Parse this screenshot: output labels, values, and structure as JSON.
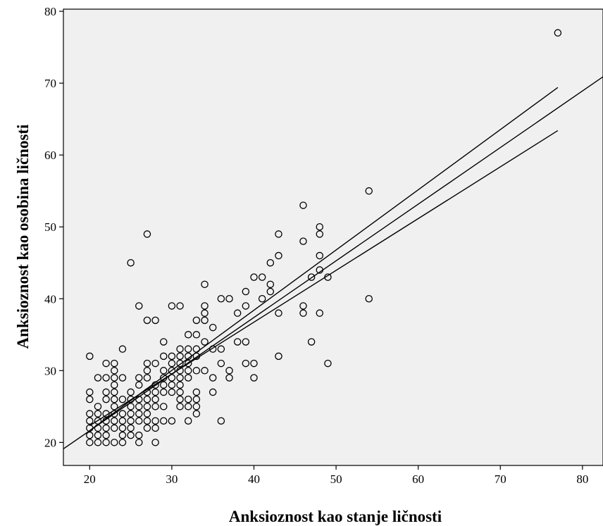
{
  "chart_data": {
    "type": "scatter",
    "title": "",
    "xlabel": "Anksioznost kao stanje ličnosti",
    "ylabel": "Anksioznost kao osobina ličnosti",
    "xlim": [
      16.8,
      82.5
    ],
    "ylim": [
      16.8,
      80.3
    ],
    "xticks": [
      20,
      30,
      40,
      50,
      60,
      70,
      80
    ],
    "yticks": [
      20,
      30,
      40,
      50,
      60,
      70,
      80
    ],
    "grid": false,
    "legend": "none",
    "colors": {
      "plot_background": "#f0f0f0",
      "marker": "#000000",
      "line": "#000000"
    },
    "points": [
      [
        20,
        20
      ],
      [
        20,
        21
      ],
      [
        20,
        22
      ],
      [
        20,
        23
      ],
      [
        20,
        24
      ],
      [
        20,
        26
      ],
      [
        20,
        27
      ],
      [
        20,
        32
      ],
      [
        21,
        20
      ],
      [
        21,
        21
      ],
      [
        21,
        22
      ],
      [
        21,
        23
      ],
      [
        21,
        24
      ],
      [
        21,
        25
      ],
      [
        21,
        29
      ],
      [
        22,
        20
      ],
      [
        22,
        21
      ],
      [
        22,
        22
      ],
      [
        22,
        23
      ],
      [
        22,
        24
      ],
      [
        22,
        26
      ],
      [
        22,
        27
      ],
      [
        22,
        29
      ],
      [
        22,
        31
      ],
      [
        23,
        20
      ],
      [
        23,
        22
      ],
      [
        23,
        23
      ],
      [
        23,
        24
      ],
      [
        23,
        25
      ],
      [
        23,
        26
      ],
      [
        23,
        27
      ],
      [
        23,
        28
      ],
      [
        23,
        29
      ],
      [
        23,
        30
      ],
      [
        23,
        31
      ],
      [
        24,
        20
      ],
      [
        24,
        21
      ],
      [
        24,
        22
      ],
      [
        24,
        23
      ],
      [
        24,
        24
      ],
      [
        24,
        26
      ],
      [
        24,
        29
      ],
      [
        24,
        33
      ],
      [
        25,
        21
      ],
      [
        25,
        22
      ],
      [
        25,
        23
      ],
      [
        25,
        24
      ],
      [
        25,
        25
      ],
      [
        25,
        26
      ],
      [
        25,
        27
      ],
      [
        25,
        45
      ],
      [
        26,
        20
      ],
      [
        26,
        21
      ],
      [
        26,
        23
      ],
      [
        26,
        24
      ],
      [
        26,
        25
      ],
      [
        26,
        26
      ],
      [
        26,
        28
      ],
      [
        26,
        29
      ],
      [
        26,
        39
      ],
      [
        27,
        22
      ],
      [
        27,
        23
      ],
      [
        27,
        24
      ],
      [
        27,
        25
      ],
      [
        27,
        26
      ],
      [
        27,
        27
      ],
      [
        27,
        29
      ],
      [
        27,
        30
      ],
      [
        27,
        31
      ],
      [
        27,
        37
      ],
      [
        27,
        49
      ],
      [
        28,
        20
      ],
      [
        28,
        22
      ],
      [
        28,
        23
      ],
      [
        28,
        25
      ],
      [
        28,
        26
      ],
      [
        28,
        27
      ],
      [
        28,
        28
      ],
      [
        28,
        31
      ],
      [
        28,
        37
      ],
      [
        29,
        23
      ],
      [
        29,
        25
      ],
      [
        29,
        27
      ],
      [
        29,
        28
      ],
      [
        29,
        29
      ],
      [
        29,
        30
      ],
      [
        29,
        32
      ],
      [
        29,
        34
      ],
      [
        30,
        23
      ],
      [
        30,
        27
      ],
      [
        30,
        28
      ],
      [
        30,
        29
      ],
      [
        30,
        30
      ],
      [
        30,
        31
      ],
      [
        30,
        32
      ],
      [
        30,
        39
      ],
      [
        31,
        25
      ],
      [
        31,
        26
      ],
      [
        31,
        27
      ],
      [
        31,
        28
      ],
      [
        31,
        29
      ],
      [
        31,
        30
      ],
      [
        31,
        31
      ],
      [
        31,
        32
      ],
      [
        31,
        33
      ],
      [
        31,
        39
      ],
      [
        32,
        23
      ],
      [
        32,
        25
      ],
      [
        32,
        26
      ],
      [
        32,
        29
      ],
      [
        32,
        30
      ],
      [
        32,
        31
      ],
      [
        32,
        32
      ],
      [
        32,
        33
      ],
      [
        32,
        35
      ],
      [
        33,
        24
      ],
      [
        33,
        25
      ],
      [
        33,
        26
      ],
      [
        33,
        27
      ],
      [
        33,
        30
      ],
      [
        33,
        32
      ],
      [
        33,
        33
      ],
      [
        33,
        35
      ],
      [
        33,
        37
      ],
      [
        34,
        30
      ],
      [
        34,
        34
      ],
      [
        34,
        37
      ],
      [
        34,
        38
      ],
      [
        34,
        39
      ],
      [
        34,
        42
      ],
      [
        35,
        27
      ],
      [
        35,
        29
      ],
      [
        35,
        33
      ],
      [
        35,
        36
      ],
      [
        36,
        23
      ],
      [
        36,
        31
      ],
      [
        36,
        33
      ],
      [
        36,
        40
      ],
      [
        37,
        29
      ],
      [
        37,
        30
      ],
      [
        37,
        40
      ],
      [
        38,
        34
      ],
      [
        38,
        38
      ],
      [
        39,
        31
      ],
      [
        39,
        34
      ],
      [
        39,
        39
      ],
      [
        39,
        41
      ],
      [
        40,
        29
      ],
      [
        40,
        31
      ],
      [
        40,
        43
      ],
      [
        41,
        40
      ],
      [
        41,
        43
      ],
      [
        42,
        41
      ],
      [
        42,
        42
      ],
      [
        42,
        45
      ],
      [
        43,
        32
      ],
      [
        43,
        38
      ],
      [
        43,
        46
      ],
      [
        43,
        49
      ],
      [
        46,
        38
      ],
      [
        46,
        39
      ],
      [
        46,
        48
      ],
      [
        46,
        53
      ],
      [
        47,
        34
      ],
      [
        47,
        43
      ],
      [
        48,
        38
      ],
      [
        48,
        44
      ],
      [
        48,
        46
      ],
      [
        48,
        49
      ],
      [
        48,
        50
      ],
      [
        49,
        31
      ],
      [
        49,
        43
      ],
      [
        54,
        40
      ],
      [
        54,
        55
      ],
      [
        77,
        77
      ]
    ],
    "fit_line": {
      "start": [
        16.8,
        19.11
      ],
      "end": [
        82.5,
        70.89
      ]
    },
    "ci_upper": {
      "start": [
        20,
        21.65
      ],
      "end": [
        77,
        69.4
      ]
    },
    "ci_lower": {
      "start": [
        20,
        22.33
      ],
      "end": [
        77,
        63.4
      ]
    }
  }
}
